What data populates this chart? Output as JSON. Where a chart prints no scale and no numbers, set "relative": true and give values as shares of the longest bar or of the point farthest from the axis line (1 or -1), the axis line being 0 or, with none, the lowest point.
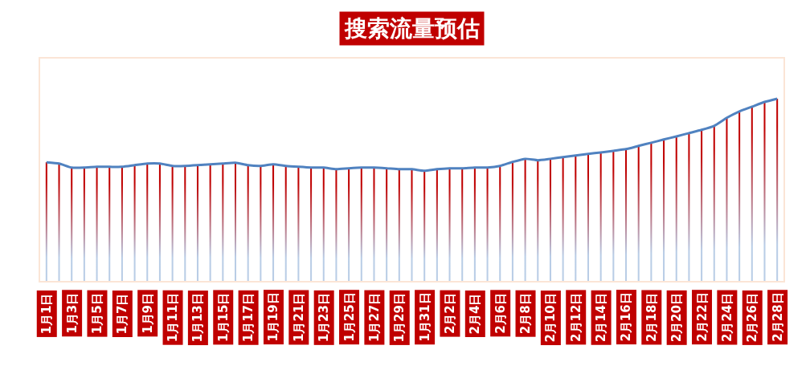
{
  "chart_data": {
    "type": "line",
    "title": "搜索流量预估",
    "relative": true,
    "categories": [
      "1月1日",
      null,
      "1月3日",
      null,
      "1月5日",
      null,
      "1月7日",
      null,
      "1月9日",
      null,
      "1月11日",
      null,
      "1月13日",
      null,
      "1月15日",
      null,
      "1月17日",
      null,
      "1月19日",
      null,
      "1月21日",
      null,
      "1月23日",
      null,
      "1月25日",
      null,
      "1月27日",
      null,
      "1月29日",
      null,
      "1月31日",
      null,
      "2月2日",
      null,
      "2月4日",
      null,
      "2月6日",
      null,
      "2月8日",
      null,
      "2月10日",
      null,
      "2月12日",
      null,
      "2月14日",
      null,
      "2月16日",
      null,
      "2月18日",
      null,
      "2月20日",
      null,
      "2月22日",
      null,
      "2月24日",
      null,
      "2月26日",
      null,
      "2月28日"
    ],
    "series": [
      {
        "type": "bar",
        "color": "#c00000",
        "values": [
          0.651,
          0.644,
          0.622,
          0.622,
          0.626,
          0.626,
          0.626,
          0.635,
          0.644,
          0.644,
          0.631,
          0.631,
          0.635,
          0.64,
          0.644,
          0.648,
          0.635,
          0.631,
          0.64,
          0.631,
          0.626,
          0.622,
          0.622,
          0.613,
          0.618,
          0.622,
          0.622,
          0.618,
          0.613,
          0.613,
          0.604,
          0.613,
          0.618,
          0.618,
          0.622,
          0.622,
          0.631,
          0.653,
          0.67,
          0.662,
          0.67,
          0.679,
          0.688,
          0.697,
          0.705,
          0.714,
          0.723,
          0.741,
          0.758,
          0.776,
          0.793,
          0.811,
          0.829,
          0.851,
          0.895,
          0.93,
          0.956,
          0.982,
          1
        ]
      },
      {
        "color": "#5082c0",
        "values": [
          0.651,
          0.644,
          0.622,
          0.622,
          0.626,
          0.626,
          0.626,
          0.635,
          0.644,
          0.644,
          0.631,
          0.631,
          0.635,
          0.64,
          0.644,
          0.648,
          0.635,
          0.631,
          0.64,
          0.631,
          0.626,
          0.622,
          0.622,
          0.613,
          0.618,
          0.622,
          0.622,
          0.618,
          0.613,
          0.613,
          0.604,
          0.613,
          0.618,
          0.618,
          0.622,
          0.622,
          0.631,
          0.653,
          0.67,
          0.662,
          0.67,
          0.679,
          0.688,
          0.697,
          0.705,
          0.714,
          0.723,
          0.741,
          0.758,
          0.776,
          0.793,
          0.811,
          0.829,
          0.851,
          0.895,
          0.93,
          0.956,
          0.982,
          1
        ]
      }
    ]
  }
}
